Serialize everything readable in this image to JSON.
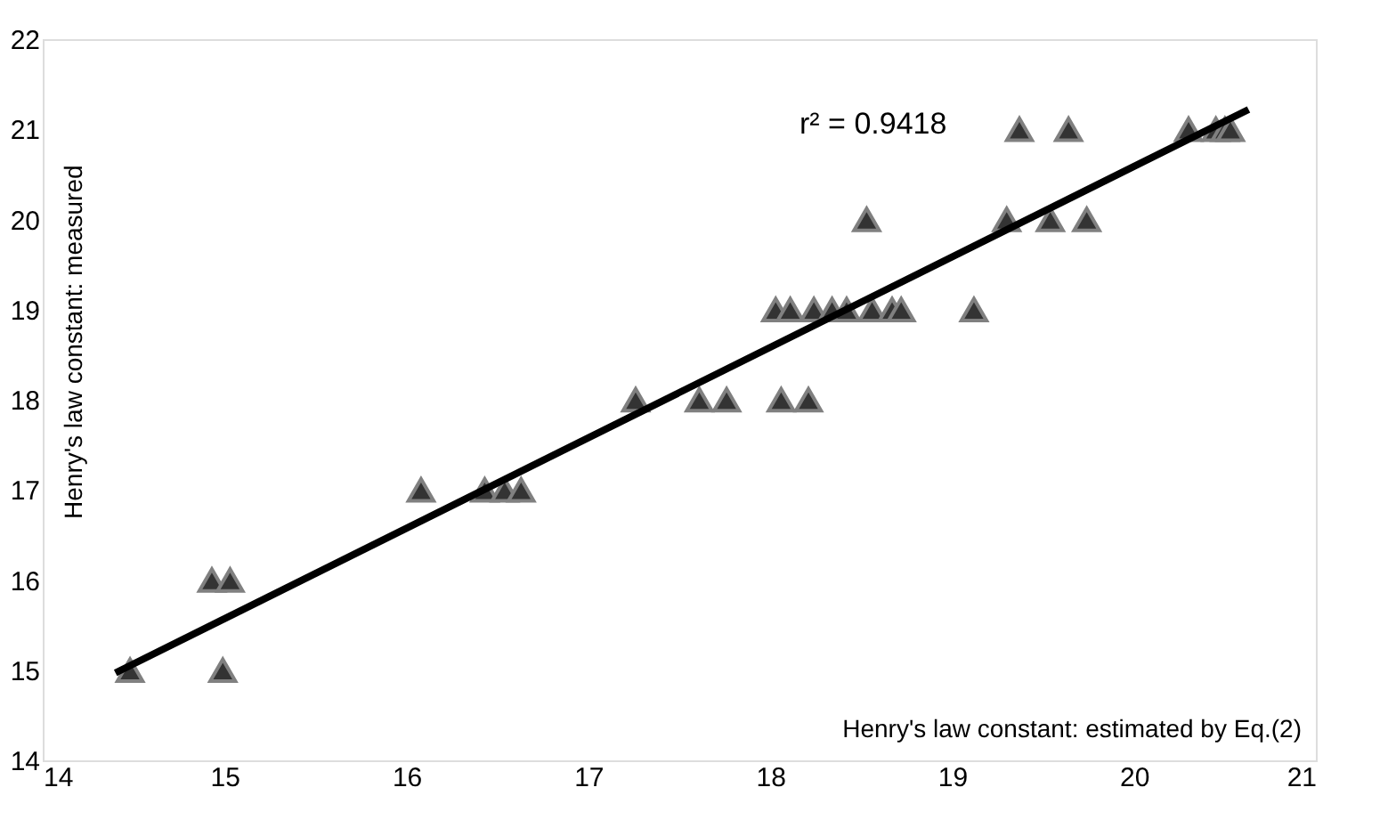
{
  "chart_data": {
    "type": "scatter",
    "xlabel": "Henry's law constant: estimated by Eq.(2)",
    "ylabel": "Henry's law constant: measured",
    "annotations": [
      "r² = 0.9418"
    ],
    "xlim": [
      14,
      21
    ],
    "xticks": [
      14,
      15,
      16,
      17,
      18,
      19,
      20,
      21
    ],
    "ylim": [
      14,
      22
    ],
    "yticks": [
      14,
      15,
      16,
      17,
      18,
      19,
      20,
      21,
      22
    ],
    "grid": false,
    "series": [
      {
        "color": "#333333",
        "marker": "triangle",
        "x": [
          14.48,
          14.93,
          15.03,
          14.99,
          16.08,
          16.43,
          16.54,
          16.63,
          17.26,
          17.61,
          17.76,
          18.06,
          18.21,
          18.03,
          18.11,
          18.24,
          18.34,
          18.42,
          18.56,
          18.67,
          18.72,
          19.12,
          18.53,
          19.3,
          19.54,
          19.74,
          19.37,
          19.64,
          20.3,
          20.45,
          20.5,
          20.53
        ],
        "values": [
          15,
          16,
          16,
          15,
          17,
          17,
          17,
          17,
          18,
          18,
          18,
          18,
          18,
          19,
          19,
          19,
          19,
          19,
          19,
          19,
          19,
          19,
          20,
          20,
          20,
          20,
          21,
          21,
          21,
          21,
          21,
          21
        ]
      },
      {
        "type": "line",
        "color": "#000000",
        "marker": "none",
        "line_style": "solid",
        "x": [
          14.4,
          20.63
        ],
        "values": [
          14.97,
          21.22
        ]
      }
    ]
  }
}
